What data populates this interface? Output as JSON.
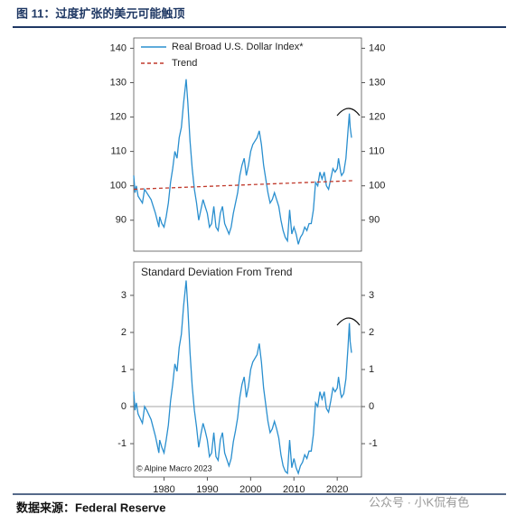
{
  "header": {
    "title": "图 11：过度扩张的美元可能触顶"
  },
  "chart_data": [
    {
      "type": "line",
      "xlim": [
        1973,
        2025.6
      ],
      "ylim": [
        81,
        143
      ],
      "yticks": [
        90,
        100,
        110,
        120,
        130,
        140
      ],
      "legend": "top-left",
      "series": [
        {
          "name": "Real Broad U.S. Dollar Index*",
          "color": "#2a8fcf",
          "style": "solid",
          "x": [
            1973,
            1973.3,
            1973.6,
            1974,
            1975,
            1975.5,
            1976,
            1977,
            1978,
            1978.8,
            1979,
            1979.5,
            1980,
            1980.5,
            1981,
            1981.5,
            1982,
            1982.5,
            1983,
            1983.5,
            1984,
            1984.5,
            1985.1,
            1985.5,
            1986,
            1986.5,
            1987,
            1987.5,
            1988,
            1988.5,
            1989,
            1989.5,
            1990,
            1990.5,
            1991,
            1991.5,
            1992,
            1992.5,
            1993,
            1993.5,
            1994,
            1995,
            1995.5,
            1996,
            1996.5,
            1997,
            1997.5,
            1998,
            1998.5,
            1999,
            1999.5,
            2000,
            2000.5,
            2001,
            2001.5,
            2002,
            2002.5,
            2003,
            2003.5,
            2004,
            2004.5,
            2005,
            2005.5,
            2006,
            2006.5,
            2007,
            2007.5,
            2008,
            2008.5,
            2009,
            2009.5,
            2010,
            2010.5,
            2011,
            2011.5,
            2012,
            2012.5,
            2013,
            2013.5,
            2014,
            2014.5,
            2015,
            2015.5,
            2016,
            2016.5,
            2017,
            2017.5,
            2018,
            2018.5,
            2019,
            2019.5,
            2020,
            2020.3,
            2020.8,
            2021,
            2021.5,
            2022,
            2022.5,
            2022.8,
            2023,
            2023.3
          ],
          "values": [
            103,
            98,
            100,
            97,
            95,
            99,
            98,
            96,
            92,
            88,
            91,
            89,
            88,
            91,
            95,
            101,
            105,
            110,
            108,
            114,
            117,
            124,
            131,
            124,
            113,
            105,
            99,
            95,
            90,
            93,
            96,
            94,
            92,
            88,
            89,
            94,
            88,
            87,
            92,
            94,
            89,
            86,
            88,
            92,
            95,
            98,
            103,
            106,
            108,
            103,
            106,
            110,
            112,
            113,
            114,
            116,
            112,
            106,
            102,
            98,
            95,
            96,
            98,
            96,
            94,
            90,
            87,
            85,
            84,
            93,
            86,
            88,
            86,
            83,
            85,
            86,
            88,
            87,
            89,
            89,
            93,
            101,
            100,
            104,
            102,
            104,
            100,
            99,
            102,
            105,
            104,
            105,
            108,
            104,
            103,
            104,
            108,
            116,
            121,
            117,
            114
          ]
        },
        {
          "name": "Trend",
          "color": "#c0392b",
          "style": "dashed",
          "x": [
            1973,
            2023.5
          ],
          "values": [
            99,
            101.5
          ]
        }
      ]
    },
    {
      "type": "line",
      "title": "Standard Deviation From Trend",
      "annotation": "© Alpine Macro 2023",
      "xlim": [
        1973,
        2025.6
      ],
      "ylim": [
        -1.9,
        3.9
      ],
      "xticks": [
        1980,
        1990,
        2000,
        2010,
        2020
      ],
      "yticks": [
        -1,
        0,
        1,
        2,
        3
      ],
      "series": [
        {
          "color": "#2a8fcf",
          "style": "solid",
          "x": [
            1973,
            1973.3,
            1973.6,
            1974,
            1975,
            1975.5,
            1976,
            1977,
            1978,
            1978.8,
            1979,
            1979.5,
            1980,
            1980.5,
            1981,
            1981.5,
            1982,
            1982.5,
            1983,
            1983.5,
            1984,
            1984.5,
            1985.1,
            1985.5,
            1986,
            1986.5,
            1987,
            1987.5,
            1988,
            1988.5,
            1989,
            1989.5,
            1990,
            1990.5,
            1991,
            1991.5,
            1992,
            1992.5,
            1993,
            1993.5,
            1994,
            1995,
            1995.5,
            1996,
            1996.5,
            1997,
            1997.5,
            1998,
            1998.5,
            1999,
            1999.5,
            2000,
            2000.5,
            2001,
            2001.5,
            2002,
            2002.5,
            2003,
            2003.5,
            2004,
            2004.5,
            2005,
            2005.5,
            2006,
            2006.5,
            2007,
            2007.5,
            2008,
            2008.5,
            2009,
            2009.5,
            2010,
            2010.5,
            2011,
            2011.5,
            2012,
            2012.5,
            2013,
            2013.5,
            2014,
            2014.5,
            2015,
            2015.5,
            2016,
            2016.5,
            2017,
            2017.5,
            2018,
            2018.5,
            2019,
            2019.5,
            2020,
            2020.3,
            2020.8,
            2021,
            2021.5,
            2022,
            2022.5,
            2022.8,
            2023,
            2023.3
          ],
          "values": [
            0.4,
            -0.1,
            0.1,
            -0.2,
            -0.45,
            0,
            -0.1,
            -0.35,
            -0.8,
            -1.25,
            -0.9,
            -1.1,
            -1.25,
            -0.9,
            -0.5,
            0.15,
            0.6,
            1.15,
            0.95,
            1.6,
            1.95,
            2.7,
            3.4,
            2.65,
            1.45,
            0.55,
            -0.1,
            -0.55,
            -1.1,
            -0.75,
            -0.45,
            -0.65,
            -0.9,
            -1.35,
            -1.25,
            -0.7,
            -1.35,
            -1.45,
            -0.9,
            -0.7,
            -1.25,
            -1.6,
            -1.4,
            -0.95,
            -0.65,
            -0.3,
            0.25,
            0.6,
            0.8,
            0.25,
            0.55,
            1.0,
            1.2,
            1.3,
            1.4,
            1.7,
            1.2,
            0.5,
            0.05,
            -0.4,
            -0.7,
            -0.6,
            -0.4,
            -0.6,
            -0.85,
            -1.3,
            -1.6,
            -1.75,
            -1.8,
            -0.9,
            -1.65,
            -1.4,
            -1.65,
            -1.8,
            -1.6,
            -1.5,
            -1.3,
            -1.4,
            -1.2,
            -1.2,
            -0.75,
            0.1,
            0,
            0.4,
            0.2,
            0.4,
            -0.05,
            -0.15,
            0.15,
            0.5,
            0.4,
            0.5,
            0.8,
            0.35,
            0.25,
            0.35,
            0.75,
            1.6,
            2.25,
            1.75,
            1.45
          ]
        }
      ]
    }
  ],
  "footer": {
    "source": "数据来源：Federal Reserve",
    "watermark": "公众号 · 小K侃有色"
  }
}
